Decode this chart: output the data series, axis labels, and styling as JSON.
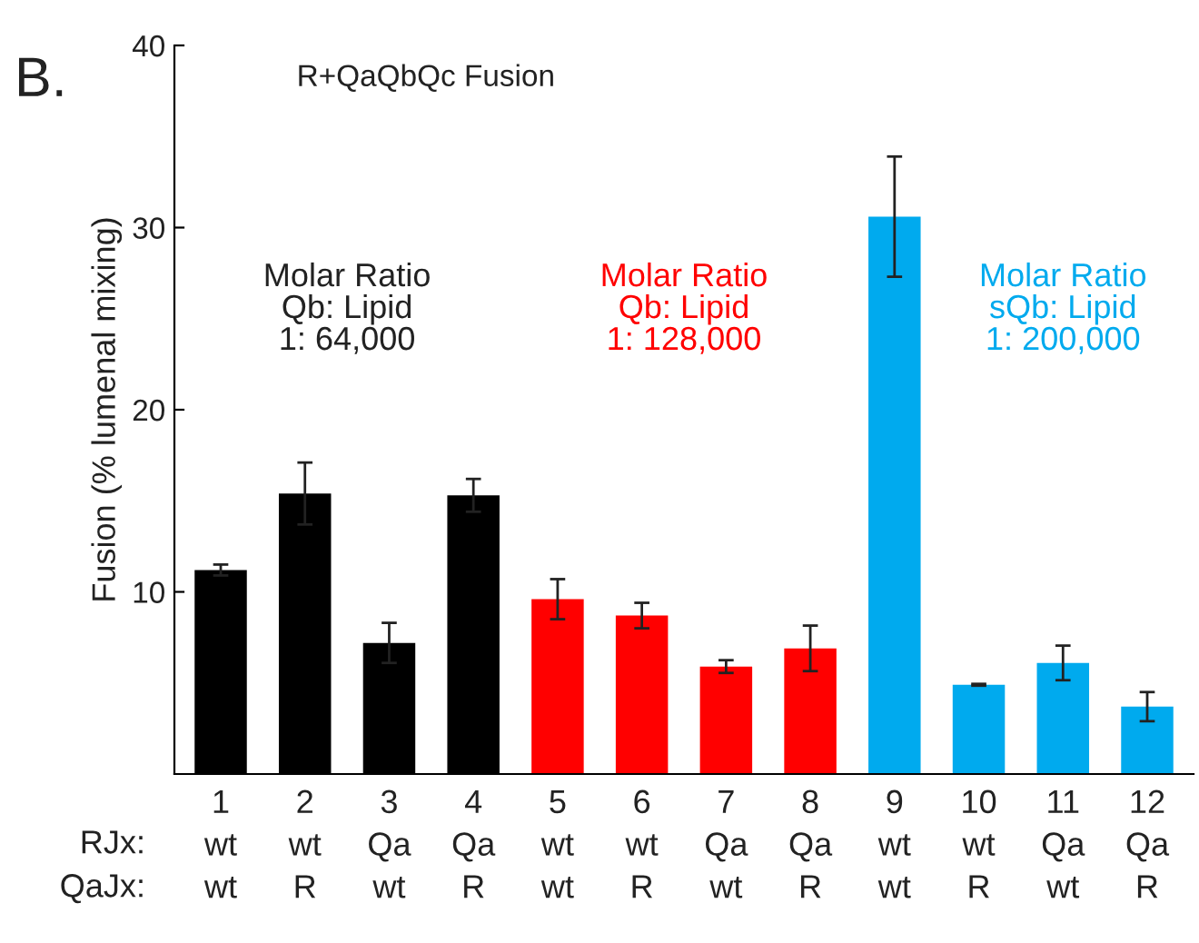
{
  "chart_data": {
    "type": "bar",
    "title": "R+QaQbQc Fusion",
    "ylabel": "Fusion (% lumenal mixing)",
    "categories": [
      "1\nwt\nwt",
      "2\nwt\nR",
      "3\nQa\nwt",
      "4\nQa\nR",
      "5\nwt\nwt",
      "6\nwt\nR",
      "7\nQa\nwt",
      "8\nQa\nR",
      "9\nwt\nwt",
      "10\nwt\nR",
      "11\nQa\nwt",
      "12\nQa\nR"
    ],
    "values": [
      11.2,
      15.4,
      7.2,
      15.3,
      9.6,
      8.7,
      5.9,
      6.9,
      30.6,
      4.9,
      6.1,
      3.7
    ],
    "errors": [
      0.3,
      1.7,
      1.1,
      0.9,
      1.1,
      0.7,
      0.35,
      1.25,
      3.3,
      0.05,
      0.95,
      0.8
    ],
    "colors": [
      "#000000",
      "#000000",
      "#000000",
      "#000000",
      "#ff0000",
      "#ff0000",
      "#ff0000",
      "#ff0000",
      "#00aaee",
      "#00aaee",
      "#00aaee",
      "#00aaee"
    ],
    "ylim": [
      0,
      40
    ],
    "yticks": [
      10,
      20,
      30,
      40
    ],
    "grid": false,
    "annotations": [
      "B.",
      "Molar Ratio\nQb: Lipid\n1: 64,000",
      "Molar Ratio\nQb: Lipid\n1: 128,000",
      "Molar Ratio\nsQb: Lipid\n1: 200,000",
      "RJx:",
      "QaJx:"
    ]
  }
}
